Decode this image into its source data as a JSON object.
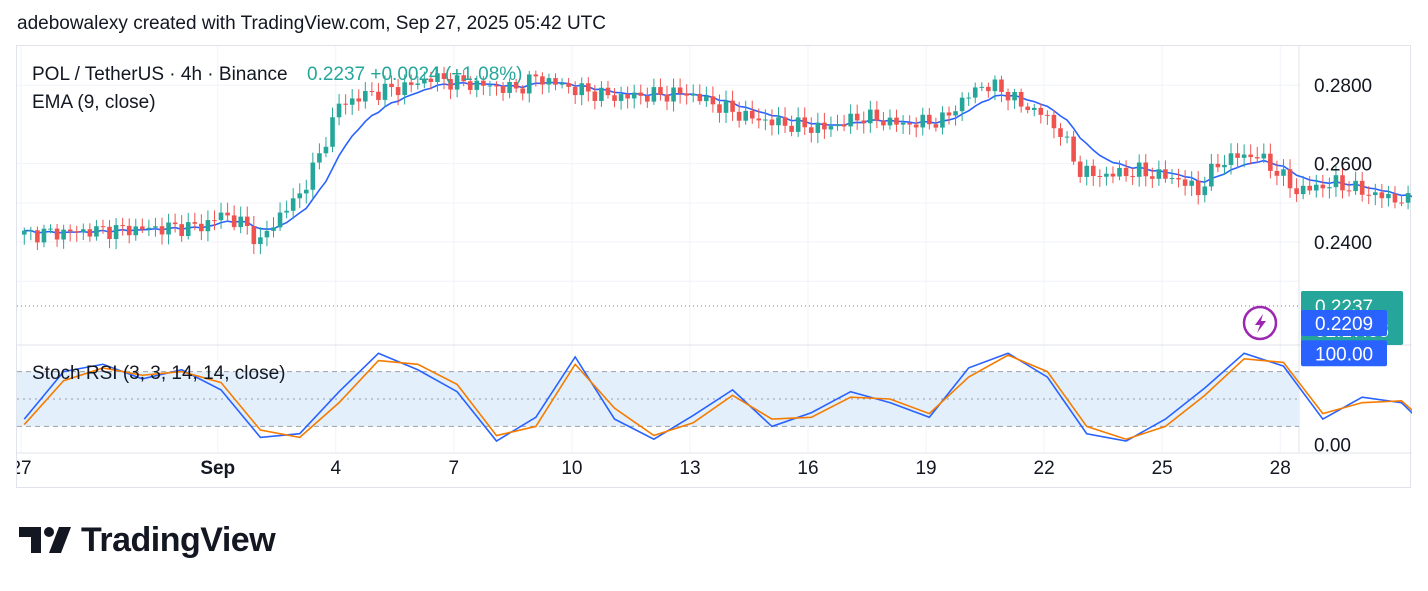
{
  "header": {
    "text": "adebowalexy created with TradingView.com, Sep 27, 2025 05:42 UTC"
  },
  "logo": {
    "text": "TradingView"
  },
  "colors": {
    "up": "#26a69a",
    "down": "#ef5350",
    "ema": "#2962ff",
    "stoch_k": "#2962ff",
    "stoch_d": "#f57c00",
    "band_fill": "#e3f0fb",
    "grid": "#f0f3fa"
  },
  "chart_data": [
    {
      "type": "candlestick",
      "title": "POL / TetherUS · 4h · Binance",
      "price_change": "0.2237  +0.0024 (+1.08%)",
      "indicator_label": "EMA (9, close)",
      "y_ticks": [
        "0.2800",
        "0.2600",
        "0.2400"
      ],
      "y_tick_values": [
        0.28,
        0.26,
        0.24
      ],
      "ylim": [
        0.214,
        0.29
      ],
      "x_ticks": [
        "27",
        "Sep",
        "4",
        "7",
        "10",
        "13",
        "16",
        "19",
        "22",
        "25",
        "28"
      ],
      "x_tick_days": [
        0,
        5,
        8,
        11,
        14,
        17,
        20,
        23,
        26,
        29,
        32
      ],
      "x_start_label": "Aug 27, 00:00",
      "candle_interval_hours": 4,
      "last_price_label": "0.2237",
      "countdown_label": "02:17:06",
      "ema_label": "0.2209",
      "last_price": 0.2237,
      "ema_value": 0.2209,
      "close_path": [
        [
          0,
          0.242
        ],
        [
          12,
          0.243
        ],
        [
          27,
          0.244
        ],
        [
          30,
          0.247
        ],
        [
          33,
          0.245
        ],
        [
          36,
          0.24
        ],
        [
          39,
          0.247
        ],
        [
          42,
          0.252
        ],
        [
          45,
          0.262
        ],
        [
          48,
          0.275
        ],
        [
          53,
          0.278
        ],
        [
          59,
          0.28
        ],
        [
          62,
          0.282
        ],
        [
          65,
          0.281
        ],
        [
          75,
          0.279
        ],
        [
          78,
          0.282
        ],
        [
          84,
          0.279
        ],
        [
          90,
          0.277
        ],
        [
          101,
          0.278
        ],
        [
          104,
          0.276
        ],
        [
          110,
          0.272
        ],
        [
          116,
          0.27
        ],
        [
          122,
          0.269
        ],
        [
          128,
          0.272
        ],
        [
          134,
          0.27
        ],
        [
          140,
          0.271
        ],
        [
          143,
          0.276
        ],
        [
          146,
          0.28
        ],
        [
          149,
          0.279
        ],
        [
          152,
          0.275
        ],
        [
          155,
          0.273
        ],
        [
          158,
          0.268
        ],
        [
          161,
          0.258
        ],
        [
          164,
          0.257
        ],
        [
          170,
          0.258
        ],
        [
          176,
          0.256
        ],
        [
          179,
          0.253
        ],
        [
          182,
          0.26
        ],
        [
          185,
          0.262
        ],
        [
          188,
          0.262
        ],
        [
          191,
          0.258
        ],
        [
          194,
          0.253
        ],
        [
          200,
          0.255
        ],
        [
          206,
          0.252
        ],
        [
          212,
          0.25
        ],
        [
          215,
          0.244
        ],
        [
          218,
          0.23
        ],
        [
          221,
          0.229
        ],
        [
          227,
          0.228
        ],
        [
          230,
          0.226
        ],
        [
          233,
          0.228
        ],
        [
          236,
          0.226
        ],
        [
          239,
          0.223
        ],
        [
          242,
          0.221
        ],
        [
          245,
          0.2195
        ],
        [
          248,
          0.22
        ],
        [
          251,
          0.222
        ],
        [
          254,
          0.2237
        ]
      ]
    },
    {
      "type": "line",
      "title": "Stoch RSI (3, 3, 14, 14, close)",
      "y_ticks": [
        "100.00",
        "0.00"
      ],
      "y_tick_values": [
        100,
        0
      ],
      "ylim": [
        -8,
        108
      ],
      "band": [
        20,
        80
      ],
      "midline": 50,
      "k_label": "100.00",
      "series": [
        {
          "role": "K",
          "points": [
            [
              0,
              28
            ],
            [
              6,
              80
            ],
            [
              12,
              88
            ],
            [
              18,
              72
            ],
            [
              24,
              82
            ],
            [
              30,
              60
            ],
            [
              36,
              8
            ],
            [
              42,
              12
            ],
            [
              48,
              58
            ],
            [
              54,
              100
            ],
            [
              60,
              82
            ],
            [
              66,
              58
            ],
            [
              72,
              4
            ],
            [
              78,
              30
            ],
            [
              84,
              96
            ],
            [
              90,
              28
            ],
            [
              96,
              6
            ],
            [
              102,
              32
            ],
            [
              108,
              60
            ],
            [
              114,
              20
            ],
            [
              120,
              35
            ],
            [
              126,
              58
            ],
            [
              132,
              46
            ],
            [
              138,
              30
            ],
            [
              144,
              84
            ],
            [
              150,
              100
            ],
            [
              156,
              74
            ],
            [
              162,
              12
            ],
            [
              168,
              4
            ],
            [
              174,
              28
            ],
            [
              180,
              62
            ],
            [
              186,
              100
            ],
            [
              192,
              86
            ],
            [
              198,
              28
            ],
            [
              204,
              52
            ],
            [
              210,
              46
            ],
            [
              216,
              4
            ],
            [
              222,
              10
            ],
            [
              228,
              52
            ],
            [
              234,
              100
            ],
            [
              240,
              26
            ],
            [
              246,
              22
            ],
            [
              252,
              100
            ],
            [
              255,
              100
            ]
          ]
        },
        {
          "role": "D",
          "points": [
            [
              0,
              22
            ],
            [
              6,
              70
            ],
            [
              12,
              84
            ],
            [
              18,
              76
            ],
            [
              24,
              80
            ],
            [
              30,
              68
            ],
            [
              36,
              16
            ],
            [
              42,
              8
            ],
            [
              48,
              46
            ],
            [
              54,
              92
            ],
            [
              60,
              88
            ],
            [
              66,
              66
            ],
            [
              72,
              10
            ],
            [
              78,
              20
            ],
            [
              84,
              88
            ],
            [
              90,
              40
            ],
            [
              96,
              10
            ],
            [
              102,
              24
            ],
            [
              108,
              54
            ],
            [
              114,
              28
            ],
            [
              120,
              30
            ],
            [
              126,
              52
            ],
            [
              132,
              50
            ],
            [
              138,
              34
            ],
            [
              144,
              74
            ],
            [
              150,
              98
            ],
            [
              156,
              80
            ],
            [
              162,
              20
            ],
            [
              168,
              6
            ],
            [
              174,
              20
            ],
            [
              180,
              54
            ],
            [
              186,
              94
            ],
            [
              192,
              90
            ],
            [
              198,
              34
            ],
            [
              204,
              46
            ],
            [
              210,
              48
            ],
            [
              216,
              10
            ],
            [
              222,
              6
            ],
            [
              228,
              44
            ],
            [
              234,
              96
            ],
            [
              240,
              34
            ],
            [
              246,
              18
            ],
            [
              252,
              92
            ],
            [
              255,
              100
            ]
          ]
        }
      ]
    }
  ]
}
